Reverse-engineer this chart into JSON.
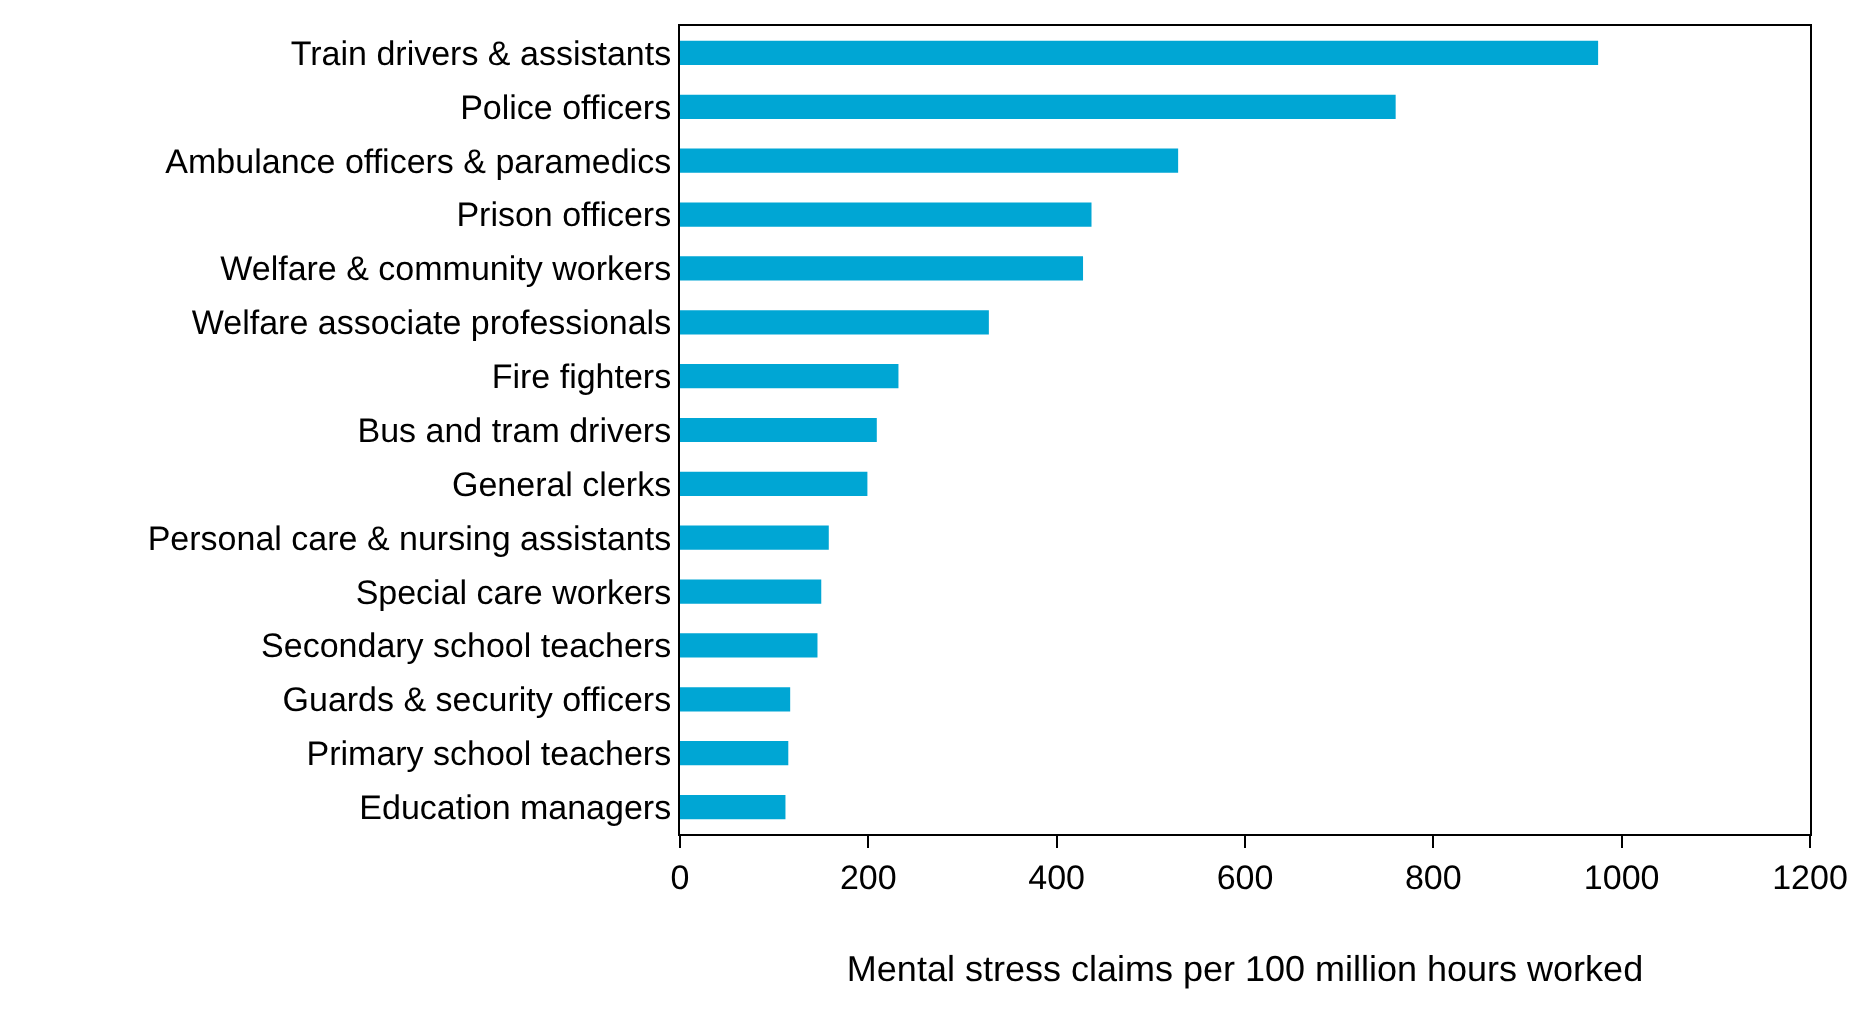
{
  "chart_data": {
    "type": "bar",
    "orientation": "horizontal",
    "xlabel": "Mental stress claims per 100 million hours worked",
    "categories": [
      "Train drivers & assistants",
      "Police officers",
      "Ambulance officers & paramedics",
      "Prison officers",
      "Welfare & community workers",
      "Welfare associate professionals",
      "Fire fighters",
      "Bus and tram drivers",
      "General clerks",
      "Personal care & nursing assistants",
      "Special care workers",
      "Secondary school teachers",
      "Guards & security officers",
      "Primary school teachers",
      "Education managers"
    ],
    "values": [
      975,
      760,
      529,
      437,
      428,
      328,
      232,
      209,
      199,
      158,
      150,
      146,
      117,
      115,
      112
    ],
    "color": "#00a6d4",
    "xlim": [
      0,
      1200
    ],
    "xticks": [
      0,
      200,
      400,
      600,
      800,
      1000,
      1200
    ]
  }
}
